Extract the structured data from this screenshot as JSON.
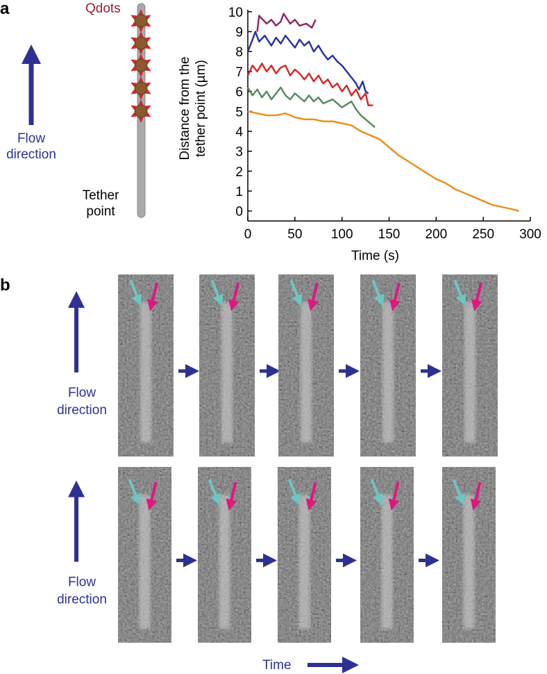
{
  "panel_a": {
    "label": "a",
    "qdots": "Qdots",
    "flow": [
      "Flow",
      "direction"
    ],
    "tether": [
      "Tether",
      "point"
    ]
  },
  "chart_data": {
    "type": "line",
    "ylabel": [
      "Distance from the",
      "tether point (µm)"
    ],
    "xlabel": "Time (s)",
    "xlim": [
      0,
      300
    ],
    "ylim": [
      -0.5,
      10.1
    ],
    "xticks": [
      0,
      50,
      100,
      150,
      200,
      250,
      300
    ],
    "yticks": [
      0,
      1,
      2,
      3,
      4,
      5,
      6,
      7,
      8,
      9,
      10
    ],
    "series": [
      {
        "color": "#8b2a62",
        "x": [
          10,
          12,
          20,
          25,
          30,
          35,
          38,
          45,
          50,
          55,
          62,
          68,
          72
        ],
        "values": [
          9.0,
          9.8,
          9.4,
          9.6,
          9.3,
          9.5,
          9.9,
          9.4,
          9.6,
          9.3,
          9.4,
          9.2,
          9.6
        ]
      },
      {
        "color": "#2a35a0",
        "x": [
          0,
          5,
          8,
          12,
          18,
          25,
          30,
          35,
          40,
          45,
          50,
          55,
          60,
          65,
          70,
          75,
          80,
          85,
          90,
          95,
          100,
          105,
          110,
          115,
          118,
          122,
          125,
          128
        ],
        "values": [
          8.0,
          8.6,
          9.0,
          8.5,
          8.8,
          8.3,
          8.7,
          8.4,
          8.8,
          8.5,
          8.2,
          8.6,
          8.3,
          8.5,
          8.0,
          8.3,
          7.9,
          7.6,
          7.8,
          7.5,
          7.3,
          7.0,
          6.7,
          6.4,
          6.1,
          6.5,
          6.0,
          5.9
        ]
      },
      {
        "color": "#d62a2a",
        "x": [
          0,
          5,
          10,
          15,
          20,
          25,
          30,
          35,
          40,
          45,
          50,
          55,
          60,
          65,
          70,
          75,
          80,
          85,
          90,
          95,
          100,
          105,
          110,
          115,
          120,
          125,
          128,
          133
        ],
        "values": [
          6.8,
          7.3,
          7.0,
          7.4,
          7.0,
          7.3,
          6.9,
          7.2,
          7.3,
          6.8,
          7.1,
          6.9,
          6.6,
          6.9,
          6.5,
          6.8,
          6.4,
          6.6,
          6.2,
          6.4,
          6.0,
          6.3,
          5.8,
          6.1,
          5.6,
          5.9,
          5.3,
          5.3
        ]
      },
      {
        "color": "#5a8a62",
        "x": [
          0,
          5,
          10,
          15,
          20,
          25,
          30,
          35,
          40,
          45,
          50,
          55,
          60,
          65,
          70,
          75,
          80,
          90,
          100,
          110,
          115,
          120,
          125,
          130,
          135
        ],
        "values": [
          6.2,
          5.8,
          6.1,
          5.7,
          6.0,
          5.6,
          5.9,
          6.2,
          5.8,
          5.6,
          5.9,
          5.7,
          5.5,
          5.8,
          5.5,
          5.7,
          5.4,
          5.6,
          5.2,
          5.5,
          5.1,
          4.8,
          4.6,
          4.4,
          4.2
        ]
      },
      {
        "color": "#e8921e",
        "x": [
          0,
          10,
          20,
          30,
          40,
          50,
          60,
          70,
          80,
          90,
          100,
          110,
          120,
          130,
          140,
          150,
          160,
          170,
          180,
          190,
          200,
          210,
          220,
          230,
          240,
          250,
          260,
          270,
          280,
          288
        ],
        "values": [
          5.0,
          4.9,
          4.8,
          4.8,
          4.9,
          4.7,
          4.6,
          4.6,
          4.5,
          4.5,
          4.4,
          4.3,
          4.0,
          3.8,
          3.6,
          3.2,
          2.8,
          2.5,
          2.2,
          1.9,
          1.6,
          1.4,
          1.1,
          0.9,
          0.7,
          0.5,
          0.3,
          0.2,
          0.1,
          0.0
        ]
      }
    ]
  },
  "panel_b": {
    "label": "b",
    "flow_rows": [
      [
        "Flow",
        "direction"
      ],
      [
        "Flow",
        "direction"
      ]
    ],
    "time": "Time"
  }
}
